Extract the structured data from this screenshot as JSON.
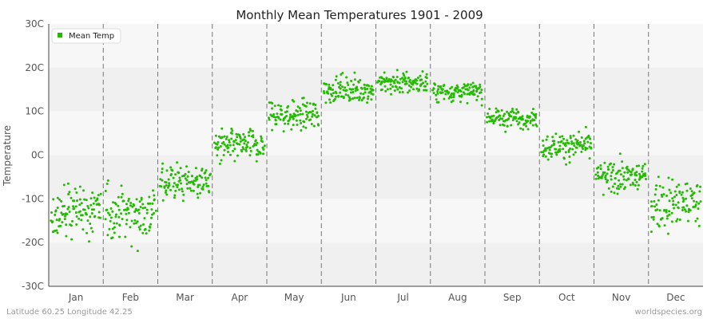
{
  "chart_data": {
    "type": "scatter",
    "title": "Monthly Mean Temperatures 1901 - 2009",
    "xlabel": "",
    "ylabel": "Temperature",
    "categories": [
      "Jan",
      "Feb",
      "Mar",
      "Apr",
      "May",
      "Jun",
      "Jul",
      "Aug",
      "Sep",
      "Oct",
      "Nov",
      "Dec"
    ],
    "y_ticks": [
      "-30C",
      "-20C",
      "-10C",
      "0C",
      "10C",
      "20C",
      "30C"
    ],
    "ylim": [
      -30,
      30
    ],
    "grid": "horizontal bands with dashed vertical month separators",
    "legend_position": "top-left",
    "series": [
      {
        "name": "Mean Temp",
        "color": "#22bb00",
        "years": "1901-2009",
        "monthly_summary": [
          {
            "month": "Jan",
            "mean": -13,
            "min": -24,
            "max": -5
          },
          {
            "month": "Feb",
            "mean": -13,
            "min": -22,
            "max": -2
          },
          {
            "month": "Mar",
            "mean": -6,
            "min": -13,
            "max": 0
          },
          {
            "month": "Apr",
            "mean": 2,
            "min": -5,
            "max": 7
          },
          {
            "month": "May",
            "mean": 9,
            "min": 3,
            "max": 14
          },
          {
            "month": "Jun",
            "mean": 15,
            "min": 10,
            "max": 19
          },
          {
            "month": "Jul",
            "mean": 16.5,
            "min": 12,
            "max": 21
          },
          {
            "month": "Aug",
            "mean": 14.5,
            "min": 11,
            "max": 18
          },
          {
            "month": "Sep",
            "mean": 8.5,
            "min": 5,
            "max": 12
          },
          {
            "month": "Oct",
            "mean": 2,
            "min": -3,
            "max": 7
          },
          {
            "month": "Nov",
            "mean": -5,
            "min": -10,
            "max": 1
          },
          {
            "month": "Dec",
            "mean": -11,
            "min": -22,
            "max": -3
          }
        ]
      }
    ]
  },
  "footer": {
    "location": "Latitude 60.25 Longitude 42.25",
    "site": "worldspecies.org"
  }
}
